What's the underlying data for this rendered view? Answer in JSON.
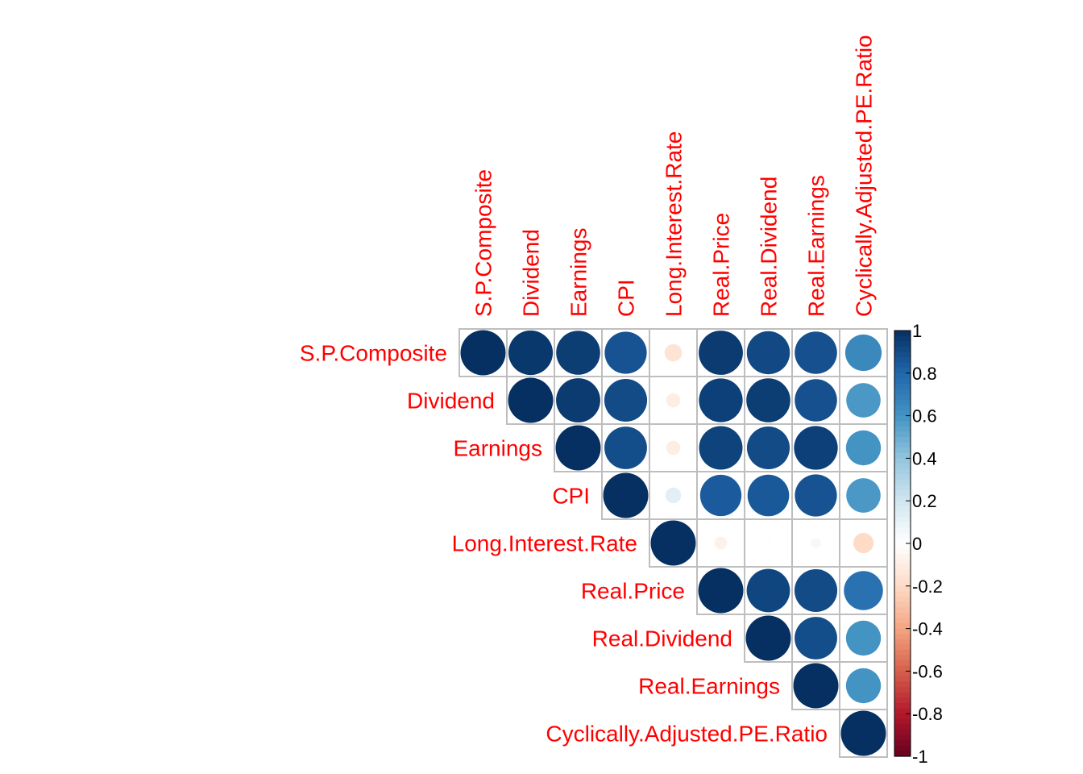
{
  "chart_data": {
    "type": "heatmap",
    "style": "correlation-matrix-upper-circles",
    "variables": [
      "S.P.Composite",
      "Dividend",
      "Earnings",
      "CPI",
      "Long.Interest.Rate",
      "Real.Price",
      "Real.Dividend",
      "Real.Earnings",
      "Cyclically.Adjusted.PE.Ratio"
    ],
    "matrix": [
      [
        1.0,
        0.97,
        0.95,
        0.87,
        -0.15,
        0.96,
        0.91,
        0.88,
        0.65
      ],
      [
        0.97,
        1.0,
        0.96,
        0.9,
        -0.1,
        0.94,
        0.95,
        0.88,
        0.58
      ],
      [
        0.95,
        0.96,
        1.0,
        0.89,
        -0.1,
        0.93,
        0.9,
        0.94,
        0.6
      ],
      [
        0.87,
        0.9,
        0.89,
        1.0,
        0.12,
        0.84,
        0.85,
        0.87,
        0.58
      ],
      [
        -0.15,
        -0.1,
        -0.1,
        0.12,
        1.0,
        -0.08,
        -0.01,
        0.05,
        -0.2
      ],
      [
        0.96,
        0.94,
        0.93,
        0.84,
        -0.08,
        1.0,
        0.92,
        0.9,
        0.75
      ],
      [
        0.91,
        0.95,
        0.9,
        0.85,
        -0.01,
        0.92,
        1.0,
        0.89,
        0.6
      ],
      [
        0.88,
        0.88,
        0.94,
        0.87,
        0.05,
        0.9,
        0.89,
        1.0,
        0.6
      ],
      [
        0.65,
        0.58,
        0.6,
        0.58,
        -0.2,
        0.75,
        0.6,
        0.6,
        1.0
      ]
    ],
    "colorbar": {
      "ticks": [
        "1",
        "0.8",
        "0.6",
        "0.4",
        "0.2",
        "0",
        "-0.2",
        "-0.4",
        "-0.6",
        "-0.8",
        "-1"
      ],
      "range": [
        -1,
        1
      ]
    },
    "colors": {
      "label": "#ff0000",
      "grid": "#bebebe",
      "palette": [
        "#67001f",
        "#b2182b",
        "#d6604d",
        "#f4a582",
        "#fddbc7",
        "#ffffff",
        "#d1e5f0",
        "#92c5de",
        "#4393c3",
        "#2166ac",
        "#053061"
      ]
    }
  }
}
